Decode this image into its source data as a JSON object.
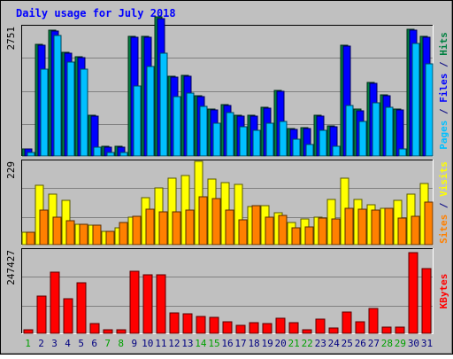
{
  "chart_data": [
    {
      "type": "bar",
      "title": "Daily usage for July 2018",
      "categories": [
        "1",
        "2",
        "3",
        "4",
        "5",
        "6",
        "7",
        "8",
        "9",
        "10",
        "11",
        "12",
        "13",
        "14",
        "15",
        "16",
        "17",
        "18",
        "19",
        "20",
        "21",
        "22",
        "23",
        "24",
        "25",
        "26",
        "27",
        "28",
        "29",
        "30",
        "31"
      ],
      "weekend_days": [
        "1",
        "7",
        "8",
        "14",
        "15",
        "21",
        "22",
        "28",
        "29"
      ],
      "y_tick_label": "2751",
      "ymax": 2751,
      "ylabel_parts": [
        "Pages",
        "Files",
        "Hits"
      ],
      "series": [
        {
          "name": "Hits",
          "color": "#008040",
          "values": [
            160,
            2380,
            2680,
            2200,
            2110,
            870,
            200,
            210,
            2550,
            2540,
            2950,
            1690,
            1710,
            1290,
            1000,
            1090,
            870,
            870,
            1040,
            1400,
            590,
            600,
            870,
            640,
            2360,
            990,
            1570,
            1300,
            1000,
            2700,
            2550
          ]
        },
        {
          "name": "Files",
          "color": "#0000ff",
          "values": [
            150,
            2360,
            2660,
            2180,
            2090,
            850,
            180,
            190,
            2530,
            2530,
            2930,
            1670,
            1690,
            1270,
            980,
            1070,
            850,
            850,
            1020,
            1380,
            570,
            580,
            850,
            620,
            2340,
            970,
            1550,
            1280,
            980,
            2680,
            2530
          ]
        },
        {
          "name": "Pages",
          "color": "#00c0ff",
          "values": [
            80,
            1840,
            2560,
            1990,
            1840,
            190,
            80,
            80,
            1490,
            1900,
            2180,
            1260,
            1330,
            1060,
            700,
            920,
            620,
            550,
            700,
            740,
            360,
            240,
            550,
            210,
            1070,
            730,
            1130,
            1040,
            150,
            2400,
            1960
          ]
        }
      ]
    },
    {
      "type": "bar",
      "categories": [
        "1",
        "2",
        "3",
        "4",
        "5",
        "6",
        "7",
        "8",
        "9",
        "10",
        "11",
        "12",
        "13",
        "14",
        "15",
        "16",
        "17",
        "18",
        "19",
        "20",
        "21",
        "22",
        "23",
        "24",
        "25",
        "26",
        "27",
        "28",
        "29",
        "30",
        "31"
      ],
      "y_tick_label": "229",
      "ymax": 229,
      "ylabel_parts": [
        "Sites",
        "Visits"
      ],
      "series": [
        {
          "name": "Visits",
          "color": "#ffff00",
          "values": [
            35,
            163,
            140,
            123,
            55,
            53,
            36,
            46,
            76,
            130,
            155,
            183,
            190,
            229,
            180,
            170,
            165,
            105,
            108,
            88,
            61,
            70,
            75,
            125,
            182,
            125,
            110,
            99,
            123,
            140,
            167
          ]
        },
        {
          "name": "Sites",
          "color": "#ff8000",
          "values": [
            35,
            96,
            75,
            66,
            55,
            53,
            36,
            60,
            78,
            98,
            90,
            91,
            94,
            132,
            126,
            95,
            69,
            106,
            76,
            80,
            47,
            49,
            72,
            71,
            99,
            97,
            96,
            99,
            72,
            78,
            118
          ]
        }
      ]
    },
    {
      "type": "bar",
      "categories": [
        "1",
        "2",
        "3",
        "4",
        "5",
        "6",
        "7",
        "8",
        "9",
        "10",
        "11",
        "12",
        "13",
        "14",
        "15",
        "16",
        "17",
        "18",
        "19",
        "20",
        "21",
        "22",
        "23",
        "24",
        "25",
        "26",
        "27",
        "28",
        "29",
        "30",
        "31"
      ],
      "y_tick_label": "247427",
      "ymax": 247427,
      "ylabel_parts": [
        "KBytes"
      ],
      "series": [
        {
          "name": "KBytes",
          "color": "#ff0000",
          "values": [
            11000,
            110000,
            182000,
            103000,
            150000,
            29000,
            10000,
            11000,
            185000,
            175000,
            173000,
            60000,
            57000,
            51000,
            47000,
            33000,
            25000,
            32000,
            30000,
            44000,
            32000,
            11000,
            42000,
            17000,
            62000,
            34000,
            75000,
            18000,
            18000,
            240000,
            192000
          ]
        }
      ]
    }
  ],
  "colors": {
    "frame_bg": "#c0c0c0",
    "plot_bg": "#c0c0c0",
    "title": "#0000ff",
    "label_dark": "#000080",
    "weekday": "#000080",
    "weekend": "#00a000",
    "grid": "#808080"
  }
}
